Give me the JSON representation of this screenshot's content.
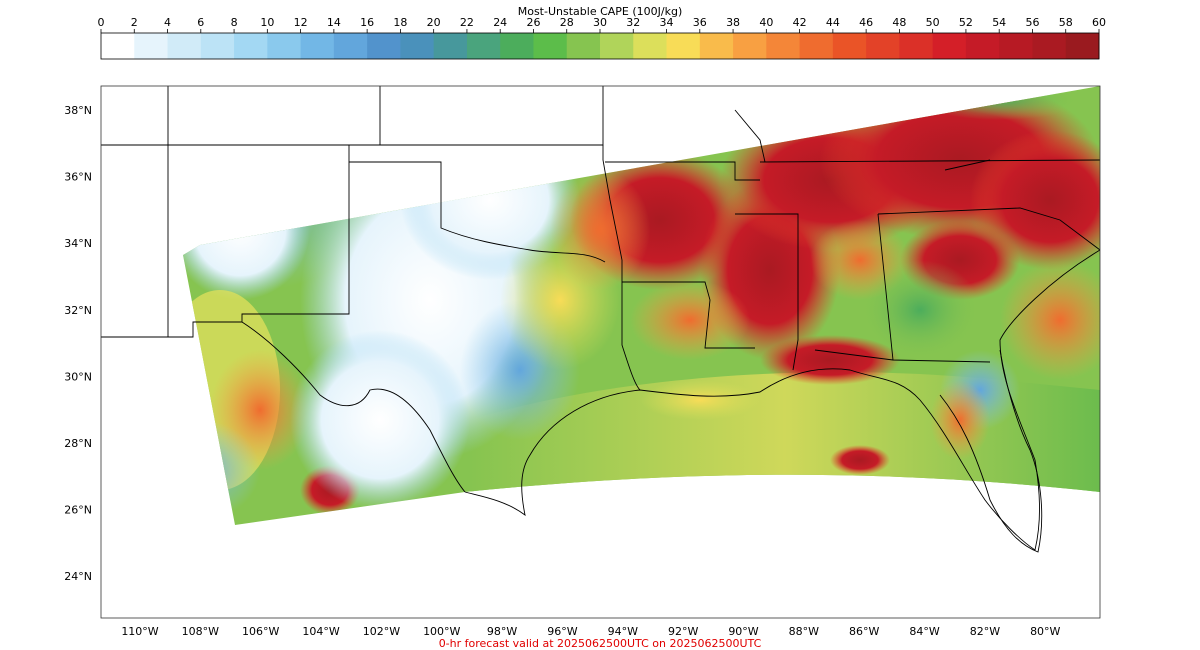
{
  "colorbar": {
    "title": "Most-Unstable CAPE (100J/kg)",
    "ticks": [
      "0",
      "2",
      "4",
      "6",
      "8",
      "10",
      "12",
      "14",
      "16",
      "18",
      "20",
      "22",
      "24",
      "26",
      "28",
      "30",
      "32",
      "34",
      "36",
      "38",
      "40",
      "42",
      "44",
      "46",
      "48",
      "50",
      "52",
      "54",
      "56",
      "58",
      "60"
    ],
    "colors": [
      "#ffffff",
      "#e6f4fc",
      "#d1ebf8",
      "#bce3f6",
      "#a3d8f3",
      "#8ac9ed",
      "#72b7e6",
      "#62a6dc",
      "#5293cc",
      "#4a91bb",
      "#47989c",
      "#4aa47d",
      "#4cad5c",
      "#5cbd4a",
      "#86c450",
      "#b0d45a",
      "#dcdf5b",
      "#f8dc57",
      "#f9bb4b",
      "#f8a042",
      "#f48638",
      "#ef6c2f",
      "#ea5427",
      "#e34228",
      "#db3028",
      "#d41f28",
      "#c51b27",
      "#b71a24",
      "#aa1a22",
      "#9a1a1f"
    ]
  },
  "map": {
    "lat_labels": [
      "38°N",
      "36°N",
      "34°N",
      "32°N",
      "30°N",
      "28°N",
      "26°N",
      "24°N"
    ],
    "lon_labels": [
      "110°W",
      "108°W",
      "106°W",
      "104°W",
      "102°W",
      "100°W",
      "98°W",
      "96°W",
      "94°W",
      "92°W",
      "90°W",
      "88°W",
      "86°W",
      "84°W",
      "82°W",
      "80°W"
    ],
    "footer": "0-hr forecast valid at 2025062500UTC on 2025062500UTC",
    "footer_color": "#e00000",
    "border_color": "#000000"
  }
}
